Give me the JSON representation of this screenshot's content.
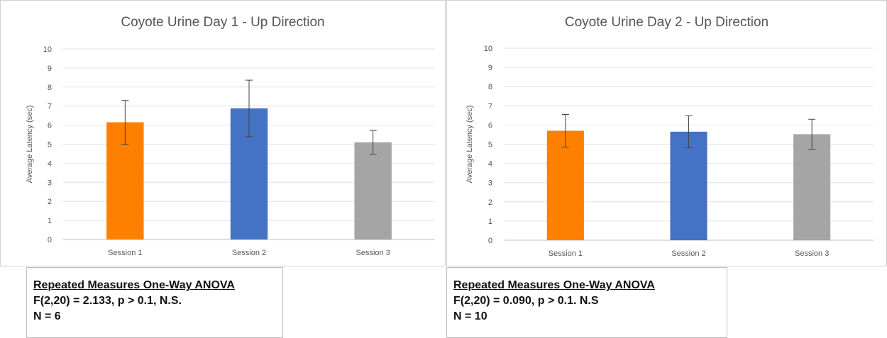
{
  "chart_data": [
    {
      "type": "bar",
      "title": "Coyote Urine Day 1 - Up Direction",
      "ylabel": "Average Latency (sec)",
      "xlabel": "",
      "ylim": [
        0,
        10
      ],
      "yticks": [
        0,
        1,
        2,
        3,
        4,
        5,
        6,
        7,
        8,
        9,
        10
      ],
      "grid": true,
      "categories": [
        "Session 1",
        "Session 2",
        "Session 3"
      ],
      "values": [
        6.15,
        6.88,
        5.1
      ],
      "error": [
        1.15,
        1.48,
        0.62
      ],
      "colors": [
        "#ff7f00",
        "#4472c4",
        "#a5a5a5"
      ]
    },
    {
      "type": "bar",
      "title": "Coyote Urine Day 2 - Up Direction",
      "ylabel": "Average Latency (sec)",
      "xlabel": "",
      "ylim": [
        0,
        10
      ],
      "yticks": [
        0,
        1,
        2,
        3,
        4,
        5,
        6,
        7,
        8,
        9,
        10
      ],
      "grid": true,
      "categories": [
        "Session 1",
        "Session 2",
        "Session 3"
      ],
      "values": [
        5.7,
        5.65,
        5.52
      ],
      "error": [
        0.85,
        0.83,
        0.78
      ],
      "colors": [
        "#ff7f00",
        "#4472c4",
        "#a5a5a5"
      ]
    }
  ],
  "stats": [
    {
      "heading": "Repeated Measures One-Way ANOVA",
      "result": "F(2,20) = 2.133, p > 0.1, N.S.",
      "n": "N = 6"
    },
    {
      "heading": "Repeated Measures One-Way ANOVA",
      "result": "F(2,20) = 0.090, p > 0.1. N.S",
      "n": "N = 10"
    }
  ]
}
